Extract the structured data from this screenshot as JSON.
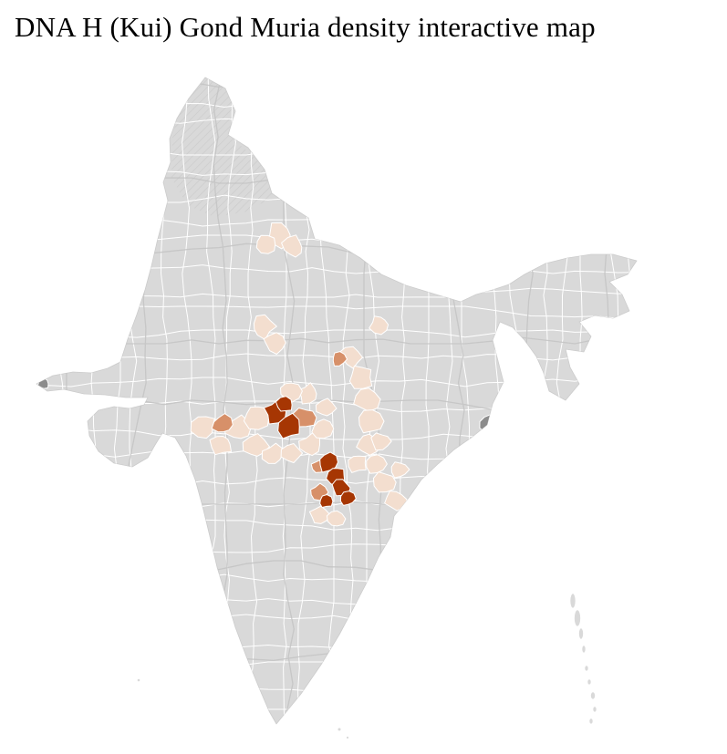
{
  "title": "DNA H (Kui) Gond Muria density interactive map",
  "map": {
    "colors": {
      "background": "#ffffff",
      "land": "#d9d9d9",
      "coast": "#cccccc",
      "district_border": "#ffffff",
      "state_border": "#c3c3c3",
      "hatch": "#c6c6c6",
      "density_low": "#f3decf",
      "density_mid": "#d79069",
      "density_high": "#a63603",
      "no_data": "#8c8c8c"
    },
    "districts": {
      "light": [
        [
          306,
          258,
          14
        ],
        [
          322,
          271,
          12
        ],
        [
          292,
          268,
          10
        ],
        [
          288,
          358,
          13
        ],
        [
          301,
          376,
          12
        ],
        [
          416,
          356,
          10
        ],
        [
          224,
          468,
          13
        ],
        [
          243,
          487,
          12
        ],
        [
          262,
          470,
          14
        ],
        [
          281,
          457,
          14
        ],
        [
          280,
          490,
          13
        ],
        [
          300,
          499,
          12
        ],
        [
          320,
          497,
          12
        ],
        [
          340,
          488,
          12
        ],
        [
          353,
          470,
          12
        ],
        [
          338,
          432,
          11
        ],
        [
          318,
          429,
          11
        ],
        [
          357,
          448,
          10
        ],
        [
          385,
          392,
          12
        ],
        [
          396,
          414,
          13
        ],
        [
          402,
          438,
          13
        ],
        [
          406,
          462,
          13
        ],
        [
          403,
          486,
          12
        ],
        [
          392,
          508,
          11
        ],
        [
          412,
          509,
          12
        ],
        [
          422,
          529,
          12
        ],
        [
          433,
          548,
          11
        ],
        [
          438,
          515,
          9
        ],
        [
          418,
          484,
          10
        ],
        [
          350,
          565,
          10
        ],
        [
          368,
          569,
          9
        ]
      ],
      "medium": [
        [
          244,
          466,
          11
        ],
        [
          334,
          458,
          12
        ],
        [
          371,
          394,
          8
        ],
        [
          349,
          540,
          9
        ],
        [
          350,
          512,
          8
        ]
      ],
      "dark": [
        [
          303,
          452,
          13
        ],
        [
          318,
          468,
          13
        ],
        [
          312,
          444,
          9
        ],
        [
          360,
          507,
          11
        ],
        [
          369,
          521,
          10
        ],
        [
          374,
          535,
          9
        ],
        [
          381,
          547,
          8
        ],
        [
          357,
          550,
          8
        ]
      ],
      "gray": [
        [
          536,
          466,
          11
        ],
        [
          546,
          452,
          7
        ],
        [
          47,
          421,
          6
        ]
      ]
    },
    "islands": [
      [
        628,
        659,
        3,
        8
      ],
      [
        633,
        678,
        3.5,
        9
      ],
      [
        637,
        695,
        2.5,
        6
      ],
      [
        640,
        712,
        2,
        4
      ],
      [
        643,
        733,
        2,
        3
      ],
      [
        646,
        748,
        2,
        3
      ],
      [
        650,
        763,
        2.5,
        4
      ],
      [
        652,
        778,
        2,
        3
      ],
      [
        648,
        791,
        2,
        3
      ]
    ],
    "specks": [
      [
        152,
        746,
        1.6
      ],
      [
        372,
        800,
        1.8
      ],
      [
        381,
        809,
        1.4
      ]
    ]
  }
}
